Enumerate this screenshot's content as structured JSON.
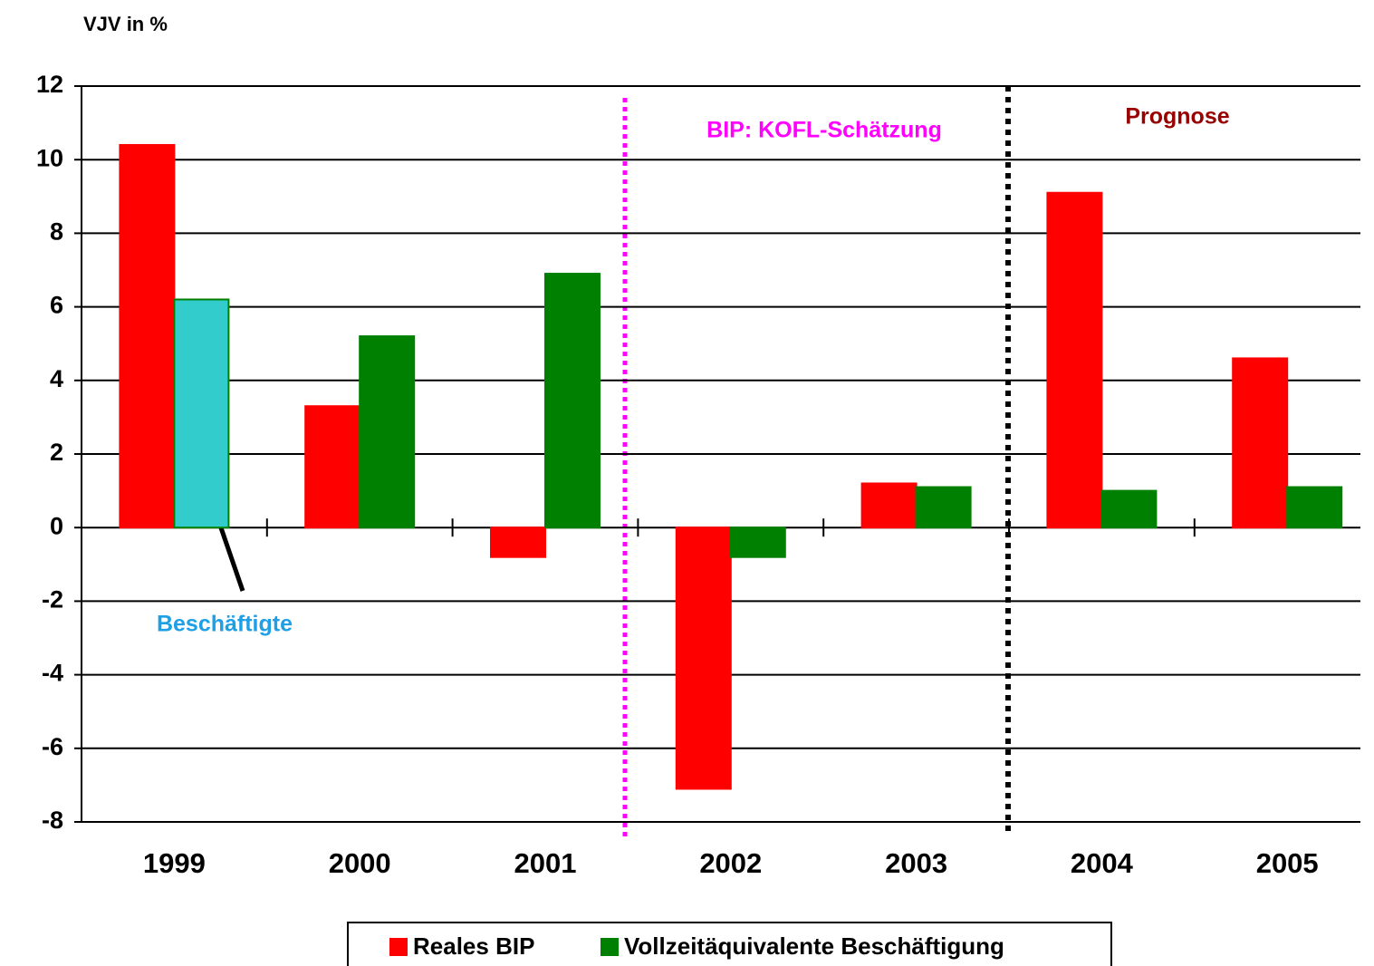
{
  "chart_data": {
    "type": "bar",
    "y_label": "VJV in %",
    "categories": [
      "1999",
      "2000",
      "2001",
      "2002",
      "2003",
      "2004",
      "2005"
    ],
    "series": [
      {
        "name": "Reales BIP",
        "color": "#ff0000",
        "values": [
          10.4,
          3.3,
          -0.8,
          -7.1,
          1.2,
          9.1,
          4.6
        ]
      },
      {
        "name": "Vollzeitäquivalente Beschäftigung",
        "color": "#008000",
        "values": [
          6.2,
          5.2,
          6.9,
          -0.8,
          1.1,
          1.0,
          1.1
        ],
        "point_colors": [
          "#33cccc",
          "#008000",
          "#008000",
          "#008000",
          "#008000",
          "#008000",
          "#008000"
        ]
      }
    ],
    "ylim": [
      -8,
      12
    ],
    "yticks": [
      -8,
      -6,
      -4,
      -2,
      0,
      2,
      4,
      6,
      8,
      10,
      12
    ],
    "grid": true,
    "annotations": [
      {
        "text": "BIP: KOFL-Schätzung",
        "color": "#ff00ff"
      },
      {
        "text": "Prognose",
        "color": "#990000"
      },
      {
        "text": "Beschäftigte",
        "color": "#1ea0e6"
      }
    ]
  }
}
